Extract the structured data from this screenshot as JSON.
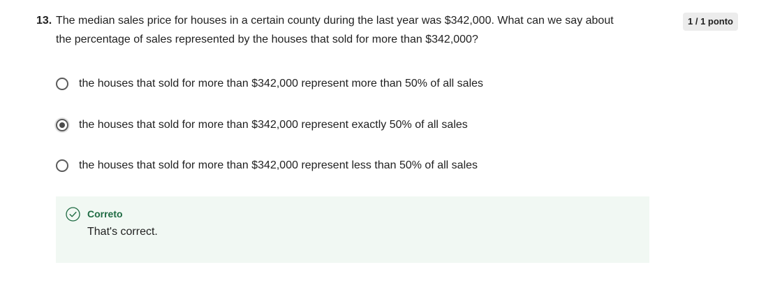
{
  "question": {
    "number": "13.",
    "text_line1": "The median sales price for houses in a certain county during the last year was $342,000. What can we say about",
    "text_line2": "the percentage of sales represented by the houses that sold for more than $342,000?"
  },
  "score": {
    "label": "1 / 1 ponto"
  },
  "options": [
    {
      "label": "the houses that sold for more than $342,000 represent more than 50% of all sales",
      "selected": false
    },
    {
      "label": "the houses that sold for more than $342,000 represent exactly 50% of all sales",
      "selected": true
    },
    {
      "label": "the houses that sold for more than $342,000 represent less than 50% of all sales",
      "selected": false
    }
  ],
  "feedback": {
    "title": "Correto",
    "message": "That's correct.",
    "icon": "check-circle-icon",
    "color": "#1f6b43",
    "background": "#f1f8f3"
  }
}
